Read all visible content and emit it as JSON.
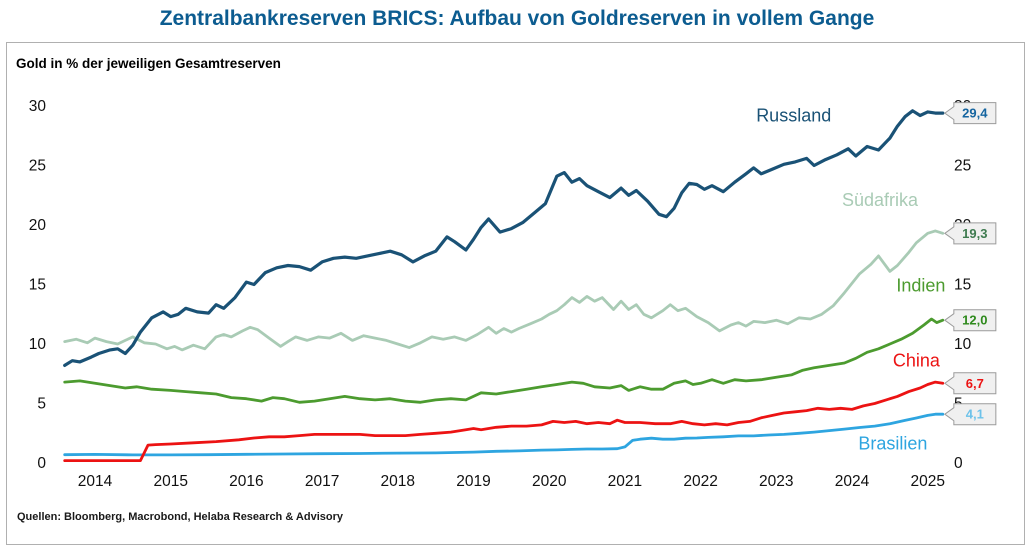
{
  "title": "Zentralbankreserven BRICS: Aufbau von Goldreserven in vollem Gange",
  "subtitle": "Gold in % der jeweiligen Gesamtreserven",
  "source": "Quellen: Bloomberg, Macrobond, Helaba Research & Advisory",
  "colors": {
    "title": "#0C5C90",
    "frame_border": "#B0B0B0",
    "axis_text": "#111111",
    "callout_fill": "#F0F0F0",
    "callout_border": "#9B9B9B"
  },
  "chart_data": {
    "type": "line",
    "title": "Zentralbankreserven BRICS: Aufbau von Goldreserven in vollem Gange",
    "ylabel": "Gold in % der jeweiligen Gesamtreserven",
    "xlabel": "",
    "grid": false,
    "legend_position": "inline-right",
    "ylim": [
      0,
      30
    ],
    "y_ticks": [
      0,
      5,
      10,
      15,
      20,
      25,
      30
    ],
    "y_axis_sides": [
      "left",
      "right"
    ],
    "x_ticks": [
      "2014",
      "2015",
      "2016",
      "2017",
      "2018",
      "2019",
      "2020",
      "2021",
      "2022",
      "2023",
      "2024",
      "2025"
    ],
    "x_range": [
      2013.6,
      2025.35
    ],
    "series": [
      {
        "id": "russland",
        "name": "Russland",
        "color": "#1A5276",
        "width": 3.2,
        "end_label": "29,4",
        "end_label_color": "#1565A0",
        "label_anchor": [
          2023.23,
          28.7
        ],
        "x": [
          2013.6,
          2013.7,
          2013.8,
          2013.95,
          2014.05,
          2014.2,
          2014.3,
          2014.4,
          2014.5,
          2014.6,
          2014.75,
          2014.9,
          2015.0,
          2015.1,
          2015.2,
          2015.35,
          2015.5,
          2015.6,
          2015.7,
          2015.85,
          2016.0,
          2016.1,
          2016.25,
          2016.4,
          2016.55,
          2016.7,
          2016.85,
          2017.0,
          2017.15,
          2017.3,
          2017.45,
          2017.6,
          2017.75,
          2017.9,
          2018.05,
          2018.2,
          2018.35,
          2018.5,
          2018.65,
          2018.75,
          2018.9,
          2019.0,
          2019.1,
          2019.2,
          2019.35,
          2019.5,
          2019.65,
          2019.8,
          2019.95,
          2020.1,
          2020.2,
          2020.3,
          2020.4,
          2020.5,
          2020.65,
          2020.8,
          2020.95,
          2021.05,
          2021.15,
          2021.3,
          2021.45,
          2021.55,
          2021.65,
          2021.75,
          2021.85,
          2021.95,
          2022.05,
          2022.15,
          2022.3,
          2022.45,
          2022.6,
          2022.7,
          2022.8,
          2022.95,
          2023.1,
          2023.25,
          2023.4,
          2023.5,
          2023.65,
          2023.8,
          2023.95,
          2024.05,
          2024.2,
          2024.35,
          2024.5,
          2024.6,
          2024.7,
          2024.8,
          2024.9,
          2025.0,
          2025.1,
          2025.2
        ],
        "y": [
          8.2,
          8.6,
          8.5,
          8.9,
          9.2,
          9.5,
          9.6,
          9.2,
          9.9,
          11.0,
          12.2,
          12.7,
          12.3,
          12.5,
          13.0,
          12.7,
          12.6,
          13.3,
          13.0,
          13.9,
          15.2,
          15.0,
          16.0,
          16.4,
          16.6,
          16.5,
          16.2,
          16.9,
          17.2,
          17.3,
          17.2,
          17.4,
          17.6,
          17.8,
          17.5,
          16.9,
          17.4,
          17.8,
          19.0,
          18.6,
          17.9,
          18.8,
          19.8,
          20.5,
          19.4,
          19.7,
          20.2,
          21.0,
          21.8,
          24.1,
          24.4,
          23.6,
          23.9,
          23.3,
          22.8,
          22.3,
          23.1,
          22.5,
          22.9,
          22.0,
          20.9,
          20.7,
          21.4,
          22.7,
          23.5,
          23.4,
          23.0,
          23.3,
          22.8,
          23.6,
          24.3,
          24.8,
          24.3,
          24.7,
          25.1,
          25.3,
          25.6,
          25.0,
          25.5,
          25.9,
          26.4,
          25.8,
          26.6,
          26.3,
          27.3,
          28.3,
          29.1,
          29.6,
          29.2,
          29.5,
          29.4,
          29.4
        ]
      },
      {
        "id": "suedafrika",
        "name": "Südafrika",
        "color": "#A9CBB5",
        "width": 2.8,
        "end_label": "19,3",
        "end_label_color": "#3E7B4F",
        "label_anchor": [
          2024.37,
          21.6
        ],
        "x": [
          2013.6,
          2013.75,
          2013.9,
          2014.0,
          2014.15,
          2014.3,
          2014.4,
          2014.5,
          2014.65,
          2014.8,
          2014.95,
          2015.05,
          2015.15,
          2015.3,
          2015.45,
          2015.6,
          2015.7,
          2015.8,
          2015.95,
          2016.05,
          2016.15,
          2016.3,
          2016.45,
          2016.55,
          2016.65,
          2016.8,
          2016.95,
          2017.1,
          2017.25,
          2017.4,
          2017.55,
          2017.7,
          2017.85,
          2018.0,
          2018.15,
          2018.3,
          2018.45,
          2018.6,
          2018.75,
          2018.9,
          2019.05,
          2019.2,
          2019.3,
          2019.4,
          2019.5,
          2019.6,
          2019.75,
          2019.9,
          2020.0,
          2020.1,
          2020.2,
          2020.3,
          2020.4,
          2020.5,
          2020.6,
          2020.7,
          2020.85,
          2020.95,
          2021.05,
          2021.15,
          2021.25,
          2021.35,
          2021.5,
          2021.6,
          2021.7,
          2021.8,
          2021.95,
          2022.1,
          2022.25,
          2022.4,
          2022.5,
          2022.6,
          2022.7,
          2022.85,
          2023.0,
          2023.15,
          2023.3,
          2023.45,
          2023.6,
          2023.75,
          2023.9,
          2024.0,
          2024.1,
          2024.25,
          2024.35,
          2024.5,
          2024.6,
          2024.75,
          2024.85,
          2025.0,
          2025.1,
          2025.2
        ],
        "y": [
          10.2,
          10.4,
          10.1,
          10.5,
          10.2,
          10.0,
          10.3,
          10.6,
          10.1,
          10.0,
          9.6,
          9.8,
          9.5,
          9.9,
          9.6,
          10.6,
          10.8,
          10.6,
          11.1,
          11.4,
          11.2,
          10.5,
          9.8,
          10.2,
          10.6,
          10.3,
          10.6,
          10.5,
          10.9,
          10.3,
          10.7,
          10.5,
          10.3,
          10.0,
          9.7,
          10.1,
          10.6,
          10.4,
          10.6,
          10.3,
          10.8,
          11.4,
          10.9,
          11.3,
          11.0,
          11.3,
          11.7,
          12.1,
          12.5,
          12.8,
          13.3,
          13.9,
          13.5,
          14.0,
          13.6,
          13.9,
          12.9,
          13.6,
          12.9,
          13.3,
          12.5,
          12.2,
          12.8,
          13.3,
          12.8,
          13.0,
          12.3,
          11.8,
          11.1,
          11.6,
          11.8,
          11.5,
          11.9,
          11.8,
          12.0,
          11.7,
          12.2,
          12.1,
          12.5,
          13.2,
          14.3,
          15.1,
          15.9,
          16.7,
          17.4,
          16.1,
          16.6,
          17.7,
          18.5,
          19.3,
          19.5,
          19.3
        ]
      },
      {
        "id": "indien",
        "name": "Indien",
        "color": "#4C9B2F",
        "width": 2.8,
        "end_label": "12,0",
        "end_label_color": "#2F8A1D",
        "label_anchor": [
          2024.91,
          14.4
        ],
        "x": [
          2013.6,
          2013.8,
          2014.0,
          2014.2,
          2014.4,
          2014.55,
          2014.75,
          2015.0,
          2015.2,
          2015.4,
          2015.6,
          2015.8,
          2016.0,
          2016.2,
          2016.35,
          2016.5,
          2016.7,
          2016.9,
          2017.1,
          2017.3,
          2017.5,
          2017.7,
          2017.9,
          2018.1,
          2018.3,
          2018.5,
          2018.7,
          2018.9,
          2019.1,
          2019.3,
          2019.5,
          2019.7,
          2019.9,
          2020.1,
          2020.3,
          2020.45,
          2020.6,
          2020.8,
          2020.95,
          2021.05,
          2021.2,
          2021.35,
          2021.5,
          2021.65,
          2021.8,
          2021.9,
          2022.0,
          2022.15,
          2022.3,
          2022.45,
          2022.6,
          2022.8,
          2023.0,
          2023.2,
          2023.35,
          2023.5,
          2023.7,
          2023.9,
          2024.05,
          2024.2,
          2024.35,
          2024.5,
          2024.65,
          2024.8,
          2024.95,
          2025.05,
          2025.12,
          2025.2
        ],
        "y": [
          6.8,
          6.9,
          6.7,
          6.5,
          6.3,
          6.4,
          6.2,
          6.1,
          6.0,
          5.9,
          5.8,
          5.5,
          5.4,
          5.2,
          5.5,
          5.4,
          5.1,
          5.2,
          5.4,
          5.6,
          5.4,
          5.3,
          5.4,
          5.2,
          5.1,
          5.3,
          5.4,
          5.3,
          5.9,
          5.8,
          6.0,
          6.2,
          6.4,
          6.6,
          6.8,
          6.7,
          6.4,
          6.3,
          6.5,
          6.1,
          6.4,
          6.2,
          6.2,
          6.7,
          6.9,
          6.6,
          6.7,
          7.0,
          6.7,
          7.0,
          6.9,
          7.0,
          7.2,
          7.4,
          7.8,
          8.0,
          8.2,
          8.4,
          8.8,
          9.3,
          9.6,
          10.0,
          10.4,
          10.9,
          11.6,
          12.1,
          11.8,
          12.0
        ]
      },
      {
        "id": "china",
        "name": "China",
        "color": "#EC1313",
        "width": 2.8,
        "end_label": "6,7",
        "end_label_color": "#EC1313",
        "label_anchor": [
          2024.85,
          8.1
        ],
        "x": [
          2013.6,
          2014.0,
          2014.3,
          2014.6,
          2014.7,
          2014.8,
          2015.0,
          2015.3,
          2015.6,
          2015.9,
          2016.1,
          2016.3,
          2016.5,
          2016.7,
          2016.9,
          2017.1,
          2017.3,
          2017.5,
          2017.7,
          2017.9,
          2018.1,
          2018.3,
          2018.5,
          2018.7,
          2018.9,
          2019.0,
          2019.1,
          2019.3,
          2019.5,
          2019.7,
          2019.9,
          2020.05,
          2020.2,
          2020.35,
          2020.5,
          2020.65,
          2020.8,
          2020.9,
          2021.0,
          2021.2,
          2021.4,
          2021.6,
          2021.75,
          2021.9,
          2022.05,
          2022.2,
          2022.35,
          2022.5,
          2022.65,
          2022.8,
          2022.95,
          2023.1,
          2023.25,
          2023.4,
          2023.55,
          2023.7,
          2023.85,
          2024.0,
          2024.15,
          2024.3,
          2024.45,
          2024.6,
          2024.75,
          2024.9,
          2025.0,
          2025.1,
          2025.2
        ],
        "y": [
          0.2,
          0.2,
          0.2,
          0.2,
          1.5,
          1.55,
          1.6,
          1.7,
          1.8,
          1.95,
          2.1,
          2.2,
          2.2,
          2.3,
          2.4,
          2.4,
          2.4,
          2.4,
          2.3,
          2.3,
          2.3,
          2.4,
          2.5,
          2.6,
          2.8,
          2.9,
          2.8,
          3.0,
          3.1,
          3.1,
          3.2,
          3.5,
          3.4,
          3.5,
          3.3,
          3.4,
          3.3,
          3.6,
          3.4,
          3.4,
          3.3,
          3.3,
          3.5,
          3.3,
          3.2,
          3.3,
          3.2,
          3.4,
          3.5,
          3.8,
          4.0,
          4.2,
          4.3,
          4.4,
          4.6,
          4.5,
          4.6,
          4.5,
          4.8,
          5.0,
          5.3,
          5.6,
          6.0,
          6.3,
          6.6,
          6.8,
          6.7
        ]
      },
      {
        "id": "brasilien",
        "name": "Brasilien",
        "color": "#2EA5E0",
        "width": 2.8,
        "end_label": "4,1",
        "end_label_color": "#6CC2EA",
        "label_anchor": [
          2024.54,
          1.15
        ],
        "x": [
          2013.6,
          2014.0,
          2014.5,
          2015.0,
          2015.5,
          2016.0,
          2016.5,
          2017.0,
          2017.5,
          2018.0,
          2018.5,
          2019.0,
          2019.3,
          2019.6,
          2019.9,
          2020.1,
          2020.3,
          2020.5,
          2020.7,
          2020.9,
          2021.0,
          2021.1,
          2021.2,
          2021.35,
          2021.5,
          2021.65,
          2021.8,
          2021.95,
          2022.1,
          2022.3,
          2022.5,
          2022.7,
          2022.9,
          2023.1,
          2023.3,
          2023.5,
          2023.7,
          2023.9,
          2024.1,
          2024.3,
          2024.5,
          2024.7,
          2024.85,
          2025.0,
          2025.1,
          2025.2
        ],
        "y": [
          0.7,
          0.72,
          0.68,
          0.68,
          0.7,
          0.73,
          0.76,
          0.78,
          0.8,
          0.83,
          0.85,
          0.92,
          0.98,
          1.02,
          1.08,
          1.1,
          1.14,
          1.18,
          1.18,
          1.2,
          1.35,
          1.9,
          2.0,
          2.08,
          2.0,
          2.0,
          2.08,
          2.1,
          2.15,
          2.2,
          2.28,
          2.28,
          2.35,
          2.4,
          2.5,
          2.6,
          2.72,
          2.85,
          2.98,
          3.1,
          3.3,
          3.58,
          3.78,
          4.0,
          4.1,
          4.1
        ]
      }
    ]
  }
}
